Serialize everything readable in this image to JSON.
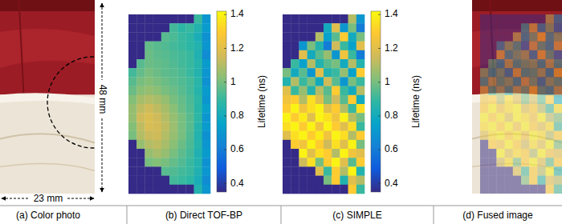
{
  "chart_data": [
    {
      "type": "heatmap",
      "title": "(b) Direct TOF-BP",
      "colorbar": {
        "label": "Lifetime (ns)",
        "range": [
          0.35,
          1.42
        ],
        "ticks": [
          0.4,
          0.6,
          0.8,
          1,
          1.2,
          1.4
        ]
      },
      "cells": [
        [
          0.35,
          0.35,
          0.35,
          0.35,
          0.35,
          0.35,
          0.35,
          0.35,
          0.9,
          0.7
        ],
        [
          0.35,
          0.35,
          0.35,
          0.35,
          0.35,
          0.92,
          0.88,
          0.9,
          0.85,
          0.72
        ],
        [
          0.35,
          0.35,
          0.35,
          0.35,
          0.95,
          0.93,
          0.9,
          0.88,
          0.82,
          0.68
        ],
        [
          0.35,
          0.35,
          0.97,
          0.95,
          0.94,
          0.92,
          0.9,
          0.88,
          0.85,
          0.7
        ],
        [
          0.35,
          0.35,
          0.98,
          0.96,
          0.95,
          0.93,
          0.92,
          0.9,
          0.84,
          0.66
        ],
        [
          0.35,
          0.95,
          0.98,
          0.97,
          0.96,
          0.94,
          0.92,
          0.9,
          0.86,
          0.72
        ],
        [
          0.92,
          0.97,
          1.0,
          0.98,
          0.96,
          0.95,
          0.93,
          0.9,
          0.85,
          0.7
        ],
        [
          0.95,
          1.0,
          1.02,
          1.0,
          0.98,
          0.96,
          0.94,
          0.92,
          0.87,
          0.68
        ],
        [
          0.98,
          1.03,
          1.05,
          1.03,
          1.0,
          0.98,
          0.95,
          0.92,
          0.86,
          0.72
        ],
        [
          1.02,
          1.08,
          1.1,
          1.08,
          1.05,
          1.0,
          0.97,
          0.93,
          0.88,
          0.7
        ],
        [
          1.05,
          1.12,
          1.15,
          1.12,
          1.08,
          1.03,
          0.98,
          0.94,
          0.87,
          0.74
        ],
        [
          1.05,
          1.15,
          1.18,
          1.15,
          1.1,
          1.05,
          1.0,
          0.95,
          0.88,
          0.7
        ],
        [
          1.02,
          1.12,
          1.17,
          1.16,
          1.12,
          1.06,
          1.0,
          0.95,
          0.86,
          0.72
        ],
        [
          1.0,
          1.1,
          1.14,
          1.15,
          1.1,
          1.05,
          1.0,
          0.94,
          0.85,
          0.68
        ],
        [
          0.35,
          1.05,
          1.1,
          1.12,
          1.08,
          1.03,
          0.98,
          0.93,
          0.86,
          0.7
        ],
        [
          0.35,
          0.35,
          1.05,
          1.08,
          1.05,
          1.0,
          0.96,
          0.92,
          0.84,
          0.72
        ],
        [
          0.35,
          0.35,
          1.0,
          1.02,
          1.0,
          0.97,
          0.94,
          0.9,
          0.85,
          0.68
        ],
        [
          0.35,
          0.35,
          0.35,
          0.35,
          0.95,
          0.94,
          0.92,
          0.9,
          0.84,
          0.7
        ],
        [
          0.35,
          0.35,
          0.35,
          0.35,
          0.35,
          0.92,
          0.9,
          0.88,
          0.82,
          0.66
        ],
        [
          0.35,
          0.35,
          0.35,
          0.35,
          0.35,
          0.35,
          0.35,
          0.35,
          0.85,
          0.7
        ]
      ]
    },
    {
      "type": "heatmap",
      "title": "(c) SIMPLE",
      "colorbar": {
        "label": "Lifetime (ns)",
        "range": [
          0.35,
          1.42
        ],
        "ticks": [
          0.4,
          0.6,
          0.8,
          1,
          1.2,
          1.4
        ]
      },
      "cells": [
        [
          0.35,
          0.35,
          0.35,
          0.35,
          0.35,
          0.35,
          0.35,
          0.35,
          1.1,
          0.7
        ],
        [
          0.35,
          0.35,
          0.35,
          0.35,
          0.35,
          0.8,
          1.2,
          0.7,
          1.0,
          0.6
        ],
        [
          0.35,
          0.35,
          0.35,
          0.35,
          1.1,
          0.75,
          0.95,
          1.3,
          0.8,
          1.0
        ],
        [
          0.35,
          0.35,
          0.7,
          1.0,
          0.85,
          0.6,
          1.15,
          0.9,
          0.75,
          1.2
        ],
        [
          0.35,
          0.35,
          1.2,
          0.8,
          0.95,
          1.05,
          0.7,
          1.25,
          0.9,
          0.6
        ],
        [
          0.35,
          0.9,
          0.75,
          1.1,
          0.85,
          0.95,
          1.0,
          0.8,
          1.1,
          0.85
        ],
        [
          1.0,
          0.8,
          0.95,
          0.7,
          1.2,
          0.85,
          0.9,
          1.05,
          0.75,
          1.3
        ],
        [
          0.85,
          1.1,
          0.9,
          1.0,
          0.8,
          1.15,
          0.95,
          0.7,
          1.0,
          0.9
        ],
        [
          1.2,
          0.9,
          1.05,
          0.85,
          1.1,
          0.95,
          1.3,
          0.9,
          0.8,
          1.1
        ],
        [
          1.25,
          1.3,
          1.1,
          1.35,
          1.2,
          1.0,
          1.15,
          0.95,
          1.3,
          0.8
        ],
        [
          1.3,
          1.4,
          1.25,
          1.35,
          1.4,
          1.2,
          1.3,
          1.1,
          0.9,
          1.35
        ],
        [
          1.4,
          1.3,
          1.38,
          1.2,
          1.4,
          1.35,
          1.25,
          1.4,
          1.1,
          1.0
        ],
        [
          1.35,
          1.4,
          1.3,
          1.4,
          1.25,
          1.4,
          1.3,
          1.2,
          1.35,
          0.9
        ],
        [
          1.2,
          1.35,
          1.4,
          1.3,
          1.38,
          1.25,
          1.4,
          1.35,
          1.1,
          1.3
        ],
        [
          0.35,
          1.3,
          1.25,
          1.4,
          1.3,
          1.15,
          1.35,
          1.2,
          1.4,
          1.0
        ],
        [
          0.35,
          0.35,
          1.4,
          1.2,
          1.35,
          1.3,
          1.1,
          1.4,
          1.25,
          1.2
        ],
        [
          0.35,
          0.35,
          1.15,
          1.35,
          1.0,
          1.3,
          1.4,
          1.2,
          0.95,
          1.3
        ],
        [
          0.35,
          0.35,
          0.35,
          0.35,
          1.2,
          0.9,
          1.3,
          1.1,
          1.4,
          0.85
        ],
        [
          0.35,
          0.35,
          0.35,
          0.35,
          0.35,
          1.0,
          1.3,
          0.85,
          1.2,
          1.1
        ],
        [
          0.35,
          0.35,
          0.35,
          0.35,
          0.35,
          0.35,
          0.35,
          0.35,
          1.3,
          0.9
        ]
      ]
    }
  ],
  "photos": [
    {
      "title": "(a) Color photo",
      "height_label": "48 mm",
      "width_label": "23 mm"
    },
    {
      "title": "(d) Fused image"
    }
  ]
}
